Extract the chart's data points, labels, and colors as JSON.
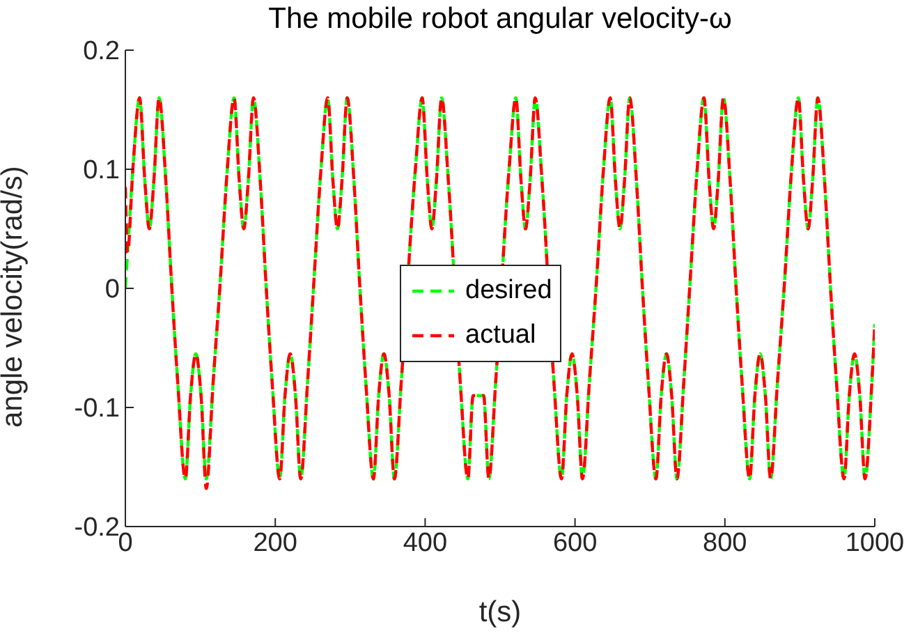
{
  "chart_data": {
    "type": "line",
    "title": "The mobile robot angular velocity-ω",
    "xlabel": "t(s)",
    "ylabel": "angle velocity(rad/s)",
    "x": [
      0,
      3,
      10,
      19,
      26,
      32,
      38,
      45,
      54,
      62,
      70,
      80,
      87,
      94,
      101,
      108,
      117,
      126,
      136,
      145,
      152,
      158,
      164,
      171,
      180,
      188,
      196,
      206,
      213,
      220,
      227,
      234,
      243,
      251,
      261,
      270,
      277,
      283,
      289,
      296,
      305,
      313,
      321,
      331,
      338,
      345,
      352,
      359,
      368,
      377,
      387,
      396,
      403,
      409,
      415,
      422,
      431,
      439,
      447,
      457,
      464,
      471,
      478,
      485,
      494,
      502,
      512,
      521,
      528,
      534,
      540,
      547,
      556,
      564,
      572,
      582,
      589,
      596,
      603,
      610,
      619,
      628,
      638,
      647,
      654,
      660,
      666,
      673,
      682,
      690,
      698,
      708,
      715,
      722,
      729,
      736,
      745,
      753,
      763,
      772,
      779,
      785,
      791,
      798,
      807,
      815,
      823,
      833,
      840,
      847,
      854,
      861,
      870,
      879,
      889,
      898,
      905,
      911,
      917,
      924,
      933,
      941,
      949,
      959,
      966,
      973,
      980,
      987,
      996,
      1000
    ],
    "series": [
      {
        "name": "desired",
        "color": "#00ff00",
        "values": [
          0,
          0.03,
          0.1,
          0.16,
          0.09,
          0.05,
          0.09,
          0.16,
          0.09,
          0,
          -0.08,
          -0.16,
          -0.09,
          -0.055,
          -0.09,
          -0.16,
          -0.08,
          0,
          0.1,
          0.16,
          0.09,
          0.05,
          0.09,
          0.16,
          0.09,
          0,
          -0.08,
          -0.16,
          -0.09,
          -0.055,
          -0.09,
          -0.16,
          -0.08,
          0,
          0.1,
          0.16,
          0.09,
          0.05,
          0.09,
          0.16,
          0.09,
          0,
          -0.08,
          -0.16,
          -0.09,
          -0.055,
          -0.09,
          -0.16,
          -0.08,
          null,
          0.1,
          0.16,
          0.09,
          0.05,
          0.09,
          0.16,
          0.09,
          null,
          -0.08,
          -0.16,
          -0.09,
          null,
          -0.09,
          -0.16,
          -0.08,
          null,
          0.1,
          0.16,
          0.09,
          0.05,
          0.09,
          0.16,
          0.09,
          null,
          -0.08,
          -0.16,
          -0.09,
          -0.055,
          -0.09,
          -0.16,
          -0.08,
          0,
          0.1,
          0.16,
          0.09,
          0.05,
          0.09,
          0.16,
          0.09,
          0,
          -0.08,
          -0.16,
          -0.09,
          -0.055,
          -0.09,
          -0.16,
          -0.08,
          0,
          0.1,
          0.16,
          0.09,
          0.05,
          0.09,
          0.16,
          0.09,
          0,
          -0.08,
          -0.16,
          -0.09,
          -0.055,
          -0.09,
          -0.16,
          -0.08,
          0,
          0.1,
          0.16,
          0.09,
          0.05,
          0.09,
          0.16,
          0.09,
          0,
          -0.08,
          -0.16,
          -0.09,
          -0.055,
          -0.09,
          -0.16,
          -0.08,
          -0.03
        ]
      },
      {
        "name": "actual",
        "color": "#ff0000",
        "values": [
          0.085,
          0.03,
          0.1,
          0.16,
          0.09,
          0.05,
          0.09,
          0.16,
          0.09,
          0,
          -0.08,
          -0.16,
          -0.09,
          -0.055,
          -0.09,
          -0.168,
          -0.08,
          0,
          0.1,
          0.16,
          0.09,
          0.05,
          0.09,
          0.16,
          0.09,
          0,
          -0.08,
          -0.16,
          -0.09,
          -0.055,
          -0.09,
          -0.16,
          -0.08,
          0,
          0.1,
          0.16,
          0.09,
          0.05,
          0.09,
          0.16,
          0.09,
          0,
          -0.08,
          -0.16,
          -0.09,
          -0.055,
          -0.09,
          -0.16,
          -0.08,
          null,
          0.1,
          0.16,
          0.09,
          0.05,
          0.09,
          0.16,
          0.09,
          null,
          -0.08,
          -0.16,
          -0.09,
          null,
          -0.09,
          -0.16,
          -0.08,
          null,
          0.1,
          0.16,
          0.09,
          0.05,
          0.09,
          0.16,
          0.09,
          null,
          -0.08,
          -0.16,
          -0.09,
          -0.055,
          -0.09,
          -0.16,
          -0.08,
          0,
          0.1,
          0.16,
          0.09,
          0.05,
          0.09,
          0.16,
          0.09,
          0,
          -0.08,
          -0.16,
          -0.09,
          -0.055,
          -0.09,
          -0.16,
          -0.08,
          0,
          0.1,
          0.16,
          0.09,
          0.05,
          0.09,
          0.16,
          0.09,
          0,
          -0.08,
          -0.16,
          -0.09,
          -0.055,
          -0.09,
          -0.16,
          -0.08,
          0,
          0.1,
          0.16,
          0.09,
          0.05,
          0.09,
          0.16,
          0.09,
          0,
          -0.08,
          -0.16,
          -0.09,
          -0.055,
          -0.09,
          -0.16,
          -0.08,
          -0.03
        ]
      }
    ],
    "xlim": [
      0,
      1000
    ],
    "xticks": [
      0,
      200,
      400,
      600,
      800,
      1000
    ],
    "ylim": [
      -0.2,
      0.2
    ],
    "yticks": [
      -0.2,
      -0.1,
      0,
      0.1,
      0.2
    ],
    "grid": false,
    "legend": "center",
    "marker": "none",
    "line_style": "dashed"
  }
}
